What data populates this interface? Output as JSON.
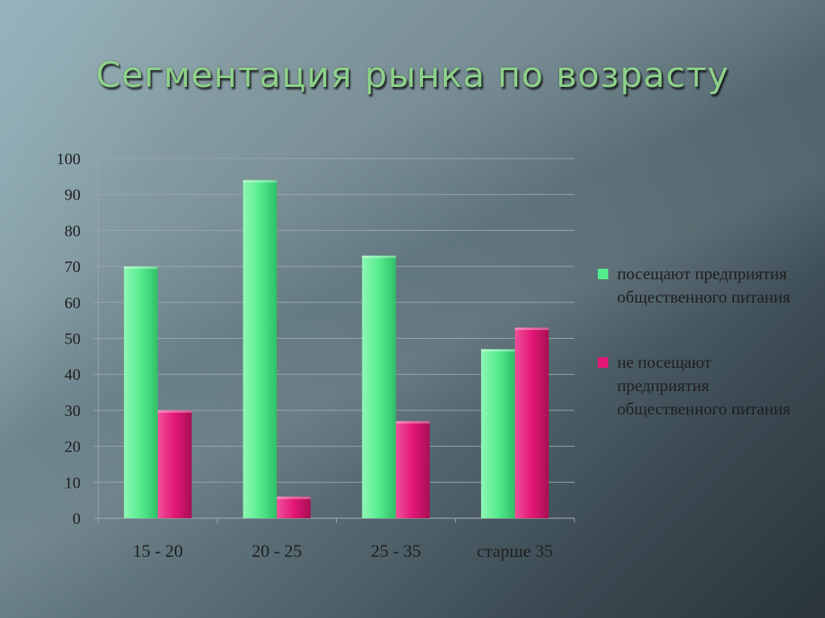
{
  "slide": {
    "title": "Сегментация рынка по возрасту"
  },
  "colors": {
    "green": "#55ec8d",
    "pink": "#e31776",
    "grid": "#9aa6aa"
  },
  "chart_data": {
    "type": "bar",
    "title": "",
    "xlabel": "",
    "ylabel": "",
    "categories": [
      "15 - 20",
      "20 - 25",
      "25 - 35",
      "старше 35"
    ],
    "series": [
      {
        "name": "посещают предприятия общественного питания",
        "values": [
          70,
          94,
          73,
          47
        ],
        "color": "#55ec8d"
      },
      {
        "name": "не посещают предприятия общественного питания",
        "values": [
          30,
          6,
          27,
          53
        ],
        "color": "#e31776"
      }
    ],
    "ylim": [
      0,
      100
    ],
    "yticks": [
      0,
      10,
      20,
      30,
      40,
      50,
      60,
      70,
      80,
      90,
      100
    ],
    "grid": true,
    "legend_position": "right"
  }
}
